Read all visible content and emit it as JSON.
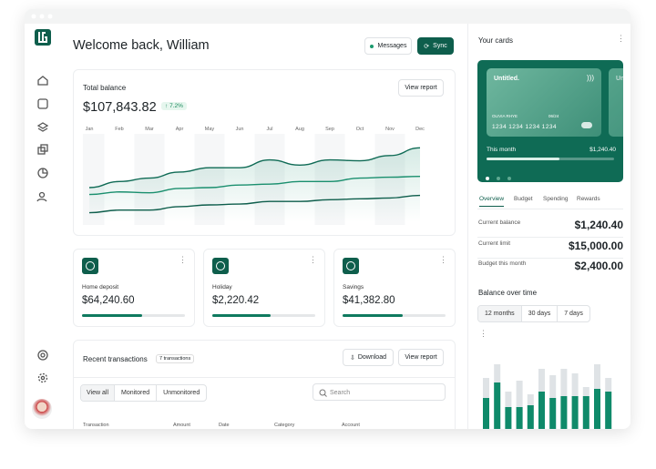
{
  "header": {
    "title": "Welcome back, William",
    "buttons": [
      "Messages",
      "Sync"
    ]
  },
  "balance": {
    "title": "Total balance",
    "amount": "$107,843.82",
    "change": "7.2%",
    "button": "View report",
    "chart": {
      "type": "line",
      "categories": [
        "Jan",
        "Feb",
        "Mar",
        "Apr",
        "May",
        "Jun",
        "Jul",
        "Aug",
        "Sep",
        "Oct",
        "Nov",
        "Dec"
      ],
      "ylim": [
        0,
        100
      ],
      "series": [
        {
          "color": "#0f6b55",
          "values": [
            40,
            47,
            51,
            58,
            63,
            63,
            72,
            66,
            72,
            71,
            77,
            86
          ]
        },
        {
          "color": "#1a8f6e",
          "values": [
            32,
            35,
            34,
            39,
            40,
            43,
            44,
            47,
            47,
            51,
            52,
            53
          ]
        },
        {
          "color": "#0e5e4c",
          "values": [
            11,
            14,
            14,
            18,
            20,
            21,
            24,
            24,
            26,
            27,
            28,
            31
          ]
        }
      ]
    }
  },
  "accounts": [
    {
      "label": "Home deposit",
      "amount": "$64,240.60",
      "progress": 58
    },
    {
      "label": "Holiday",
      "amount": "$2,220.42",
      "progress": 57
    },
    {
      "label": "Savings",
      "amount": "$41,382.80",
      "progress": 58
    }
  ],
  "transactions": {
    "title": "Recent transactions",
    "count": "7 transactions",
    "buttons": [
      "Download",
      "View report"
    ],
    "tabs": [
      "View all",
      "Monitored",
      "Unmonitored"
    ],
    "search": "Search",
    "columns": [
      "Transaction",
      "Amount",
      "Date",
      "Category",
      "Account"
    ]
  },
  "cards": {
    "title": "Your cards",
    "card": {
      "name": "Untitled.",
      "holder": "OLIVIA RHYE",
      "expiry": "06/24",
      "number": "1234 1234 1234 1234"
    },
    "this_month": {
      "label": "This month",
      "amount": "$1,240.40",
      "progress": 57
    },
    "tabs": [
      "Overview",
      "Budget",
      "Spending",
      "Rewards"
    ],
    "stats": [
      {
        "label": "Current balance",
        "value": "$1,240.40"
      },
      {
        "label": "Current limit",
        "value": "$15,000.00"
      },
      {
        "label": "Budget this month",
        "value": "$2,400.00"
      }
    ]
  },
  "balance_over_time": {
    "title": "Balance over time",
    "ranges": [
      "12 months",
      "30 days",
      "7 days"
    ],
    "chart": {
      "type": "bar",
      "ylim": [
        0,
        80
      ],
      "series": [
        {
          "color": "#dfe3e6",
          "values": [
            56,
            71,
            41,
            53,
            38,
            66,
            59,
            66,
            61,
            46,
            71,
            56
          ]
        },
        {
          "color": "#0f8a6a",
          "values": [
            34,
            51,
            24,
            24,
            26,
            41,
            34,
            36,
            36,
            36,
            44,
            41
          ]
        }
      ]
    }
  }
}
